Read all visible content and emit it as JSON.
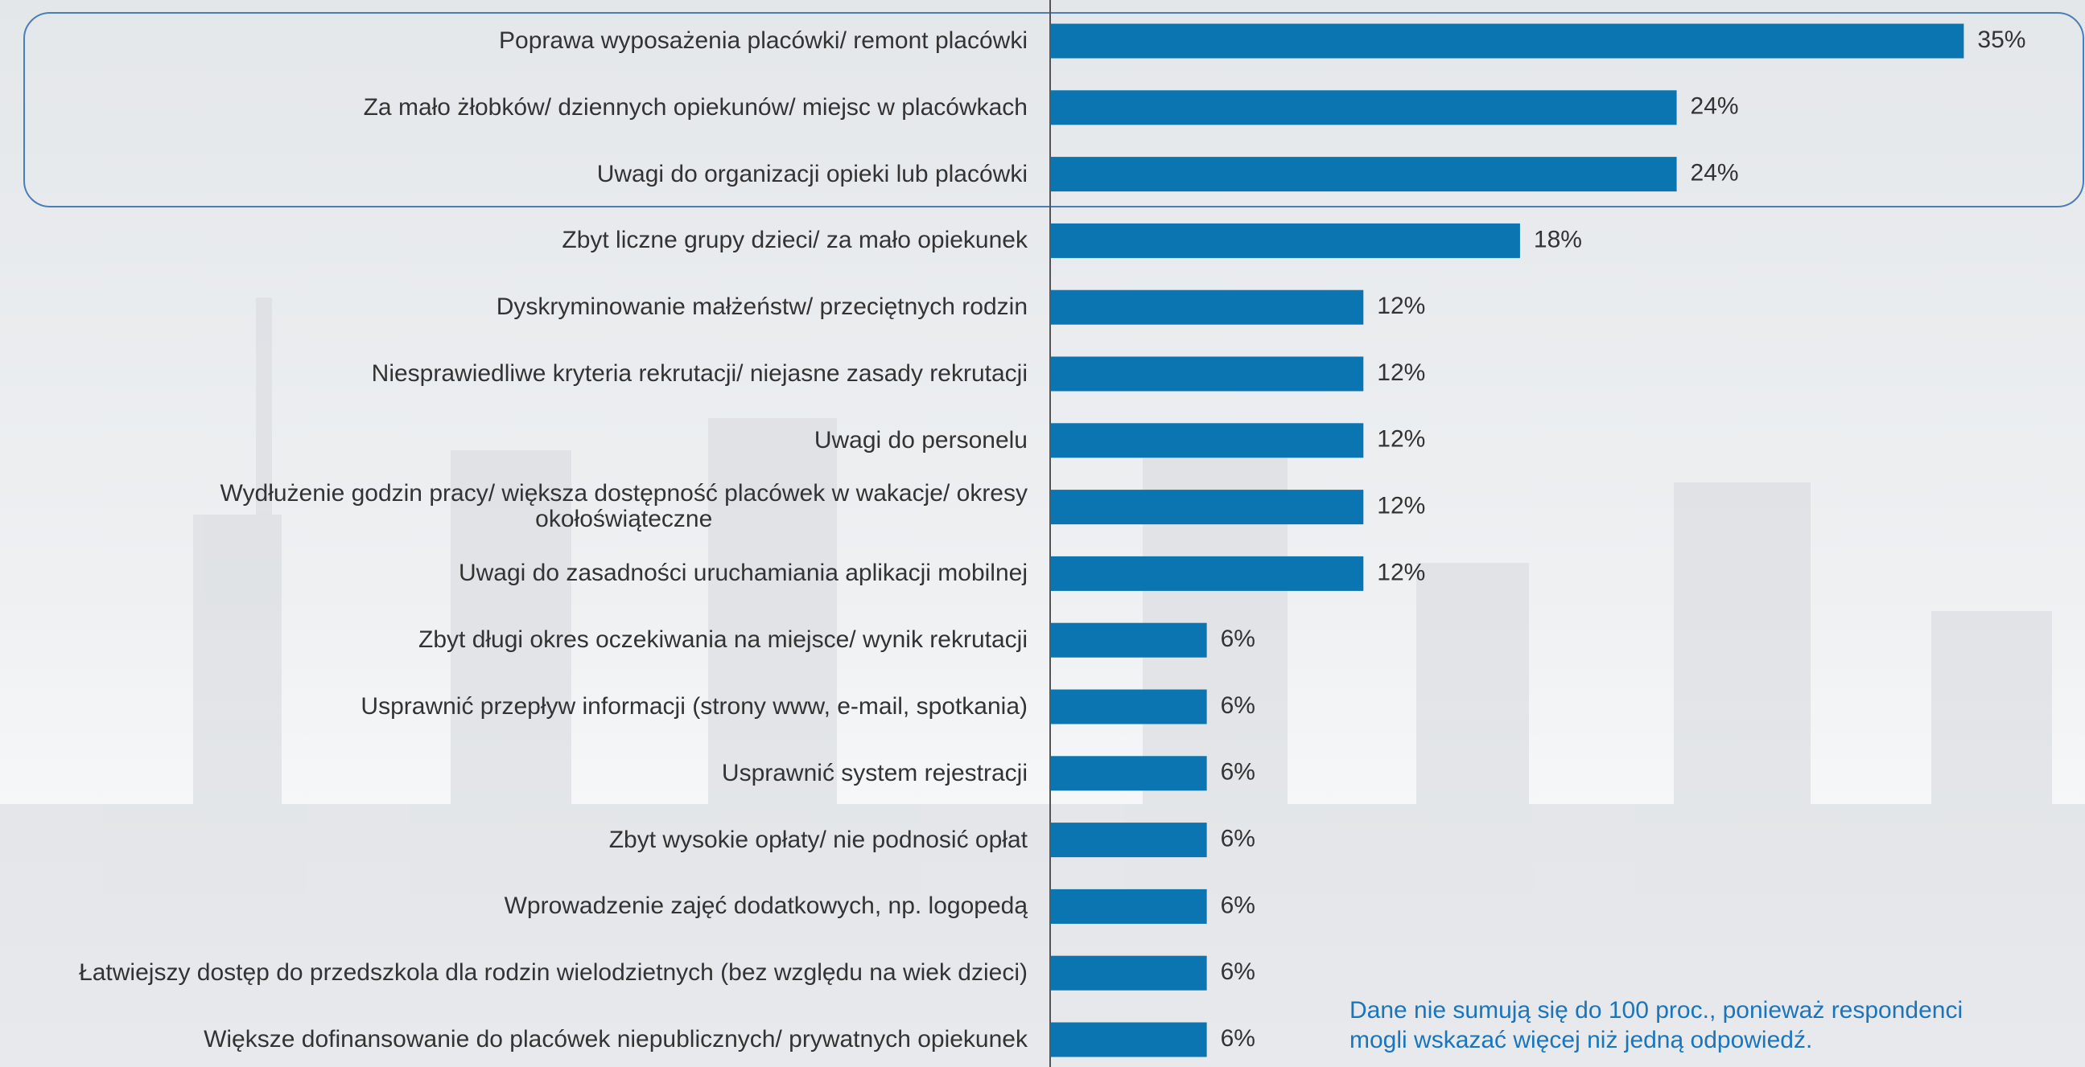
{
  "chart_data": {
    "type": "bar",
    "orientation": "horizontal",
    "color": "#0a75b0",
    "categories": [
      "Poprawa wyposażenia placówki/ remont placówki",
      "Za mało żłobków/ dziennych opiekunów/ miejsc w placówkach",
      "Uwagi do organizacji opieki lub placówki",
      "Zbyt liczne grupy dzieci/ za mało opiekunek",
      "Dyskryminowanie małżeństw/ przeciętnych rodzin",
      "Niesprawiedliwe kryteria rekrutacji/ niejasne zasady rekrutacji",
      "Uwagi do personelu",
      "Wydłużenie godzin pracy/ większa dostępność  placówek w wakacje/ okresy\nokołoświąteczne",
      "Uwagi do zasadności uruchamiania aplikacji mobilnej",
      "Zbyt długi okres oczekiwania na miejsce/ wynik rekrutacji",
      "Usprawnić przepływ informacji (strony www, e-mail, spotkania)",
      "Usprawnić system rejestracji",
      "Zbyt wysokie opłaty/ nie podnosić opłat",
      "Wprowadzenie zajęć dodatkowych, np. logopedą",
      "Łatwiejszy dostęp do przedszkola dla rodzin wielodzietnych (bez względu na wiek dzieci)",
      "Większe dofinansowanie do placówek niepublicznych/ prywatnych opiekunek"
    ],
    "values": [
      35,
      24,
      24,
      18,
      12,
      12,
      12,
      12,
      12,
      6,
      6,
      6,
      6,
      6,
      6,
      6
    ],
    "value_labels": [
      "35%",
      "24%",
      "24%",
      "18%",
      "12%",
      "12%",
      "12%",
      "12%",
      "12%",
      "6%",
      "6%",
      "6%",
      "6%",
      "6%",
      "6%",
      "6%"
    ],
    "note": [
      "Dane nie sumują się do 100 proc., ponieważ respondenci",
      "mogli wskazać więcej niż jedną odpowiedź."
    ]
  }
}
